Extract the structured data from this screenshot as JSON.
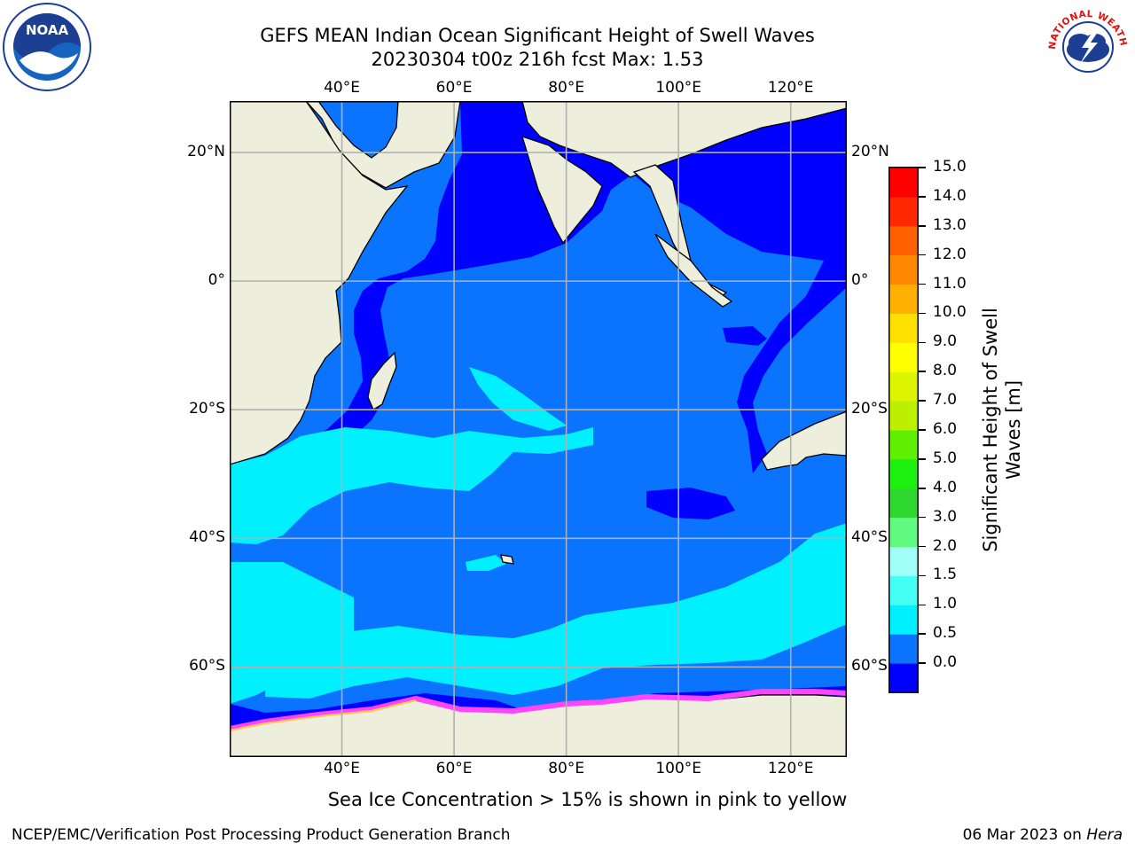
{
  "title": {
    "line1": "GEFS MEAN Indian Ocean Significant Height of Swell Waves",
    "line2": "20230304 t00z 216h fcst   Max: 1.53"
  },
  "map": {
    "lon_range": [
      20,
      130
    ],
    "lat_range": [
      -74,
      28
    ],
    "lon_ticks": [
      "40°E",
      "60°E",
      "80°E",
      "100°E",
      "120°E"
    ],
    "lon_values": [
      40,
      60,
      80,
      100,
      120
    ],
    "lat_ticks": [
      "20°N",
      "0°",
      "20°S",
      "40°S",
      "60°S"
    ],
    "lat_values": [
      20,
      0,
      -20,
      -40,
      -60
    ],
    "gridlines": true
  },
  "colorbar": {
    "title": [
      "Significant Height of Swell",
      "Waves [m]"
    ],
    "labels": [
      "15.0",
      "14.0",
      "13.0",
      "12.0",
      "11.0",
      "10.0",
      "9.0",
      "8.0",
      "7.0",
      "6.0",
      "5.0",
      "4.0",
      "3.0",
      "2.0",
      "1.5",
      "1.0",
      "0.5",
      "0.0"
    ],
    "colors_bottom_to_top": [
      "#0000ff",
      "#0a74ff",
      "#00f0ff",
      "#44fff4",
      "#a0fff8",
      "#60fa80",
      "#2ed82e",
      "#1ef010",
      "#5ef000",
      "#bcf000",
      "#ddf500",
      "#ffff00",
      "#ffe000",
      "#ffb000",
      "#ff8800",
      "#ff6000",
      "#ff2800",
      "#ff0000"
    ]
  },
  "colors": {
    "land": "#eeeedc",
    "ocean_low": "#0000ff",
    "ocean_mid": "#0a74ff",
    "ocean_high": "#00f0ff",
    "grid": "#b0b0b0",
    "ice": "#ff44ff"
  },
  "logos": {
    "left": {
      "name": "noaa-logo",
      "text": "NOAA"
    },
    "right": {
      "name": "nws-logo",
      "text": "NATIONAL WEATHER SERVICE"
    }
  },
  "footer_note": "Sea Ice Concentration > 15% is shown in pink to yellow",
  "credit_left": "NCEP/EMC/Verification Post Processing Product Generation Branch",
  "credit_right": {
    "date": "06 Mar 2023",
    "on": "on",
    "host": "Hera"
  }
}
